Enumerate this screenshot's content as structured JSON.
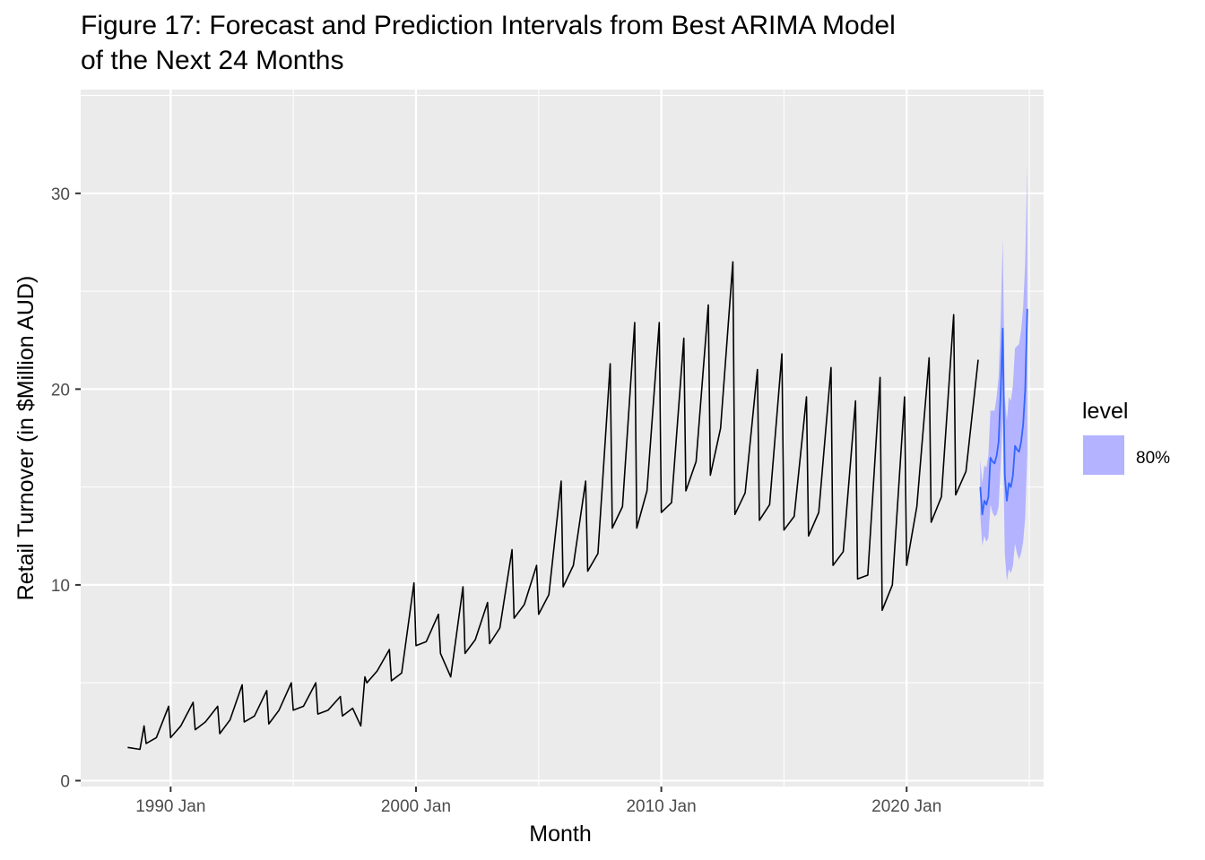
{
  "chart_data": {
    "type": "line",
    "title_lines": [
      "Figure 17: Forecast and Prediction Intervals from Best ARIMA Model",
      "of the Next 24 Months"
    ],
    "xlabel": "Month",
    "ylabel": "Retail Turnover (in $Million AUD)",
    "x_ticks": [
      "1990 Jan",
      "2000 Jan",
      "2010 Jan",
      "2020 Jan"
    ],
    "y_ticks": [
      0,
      10,
      20,
      30
    ],
    "xlim": [
      "1986-05",
      "2025-08"
    ],
    "ylim": [
      -0.3,
      35.3
    ],
    "grid": true,
    "legend": {
      "title": "level",
      "placement": "right",
      "entries": [
        {
          "label": "80%",
          "color": "#b3b3ff"
        }
      ]
    },
    "colors": {
      "actual": "#000000",
      "forecast": "#3366ff",
      "interval": "#b3b3ff",
      "panel": "#ebebeb",
      "grid": "#ffffff"
    },
    "series": [
      {
        "role": "actual",
        "x": [
          "1988-04",
          "1988-10",
          "1988-12",
          "1989-01",
          "1989-06",
          "1989-12",
          "1990-01",
          "1990-06",
          "1990-12",
          "1991-01",
          "1991-06",
          "1991-12",
          "1992-01",
          "1992-06",
          "1992-12",
          "1993-01",
          "1993-06",
          "1993-12",
          "1994-01",
          "1994-06",
          "1994-12",
          "1995-01",
          "1995-06",
          "1995-12",
          "1996-01",
          "1996-06",
          "1996-12",
          "1997-01",
          "1997-06",
          "1997-10",
          "1997-12",
          "1998-01",
          "1998-06",
          "1998-12",
          "1999-01",
          "1999-06",
          "1999-12",
          "2000-01",
          "2000-06",
          "2000-12",
          "2001-01",
          "2001-06",
          "2001-12",
          "2002-01",
          "2002-06",
          "2002-12",
          "2003-01",
          "2003-06",
          "2003-12",
          "2004-01",
          "2004-06",
          "2004-12",
          "2005-01",
          "2005-06",
          "2005-12",
          "2006-01",
          "2006-06",
          "2006-12",
          "2007-01",
          "2007-06",
          "2007-12",
          "2008-01",
          "2008-06",
          "2008-12",
          "2009-01",
          "2009-06",
          "2009-12",
          "2010-01",
          "2010-06",
          "2010-12",
          "2011-01",
          "2011-06",
          "2011-12",
          "2012-01",
          "2012-06",
          "2012-12",
          "2013-01",
          "2013-06",
          "2013-12",
          "2014-01",
          "2014-06",
          "2014-12",
          "2015-01",
          "2015-06",
          "2015-12",
          "2016-01",
          "2016-06",
          "2016-12",
          "2017-01",
          "2017-06",
          "2017-12",
          "2018-01",
          "2018-06",
          "2018-12",
          "2019-01",
          "2019-06",
          "2019-12",
          "2020-01",
          "2020-06",
          "2020-12",
          "2021-01",
          "2021-06",
          "2021-12",
          "2022-01",
          "2022-06",
          "2022-12"
        ],
        "y": [
          1.7,
          1.6,
          2.8,
          1.9,
          2.2,
          3.8,
          2.2,
          2.8,
          4.0,
          2.6,
          3.0,
          3.8,
          2.4,
          3.1,
          4.9,
          3.0,
          3.3,
          4.6,
          2.9,
          3.6,
          5.0,
          3.6,
          3.8,
          5.0,
          3.4,
          3.6,
          4.3,
          3.3,
          3.7,
          2.8,
          5.3,
          5.0,
          5.6,
          6.7,
          5.1,
          5.5,
          10.1,
          6.9,
          7.1,
          8.5,
          6.5,
          5.3,
          9.9,
          6.5,
          7.2,
          9.1,
          7.0,
          7.8,
          11.8,
          8.3,
          9.0,
          11.0,
          8.5,
          9.5,
          15.3,
          9.9,
          11.0,
          15.3,
          10.7,
          11.6,
          21.3,
          12.9,
          14.0,
          23.4,
          12.9,
          14.8,
          23.4,
          13.7,
          14.2,
          22.6,
          14.8,
          16.3,
          24.3,
          15.6,
          18.0,
          26.5,
          13.6,
          14.7,
          21.0,
          13.3,
          14.1,
          21.8,
          12.8,
          13.5,
          19.6,
          12.5,
          13.7,
          21.1,
          11.0,
          11.7,
          19.4,
          10.3,
          10.5,
          20.6,
          8.7,
          10.0,
          19.6,
          11.0,
          14.0,
          21.6,
          13.2,
          14.5,
          23.8,
          14.6,
          15.8,
          21.5
        ]
      },
      {
        "role": "forecast",
        "x": [
          "2023-01",
          "2023-02",
          "2023-03",
          "2023-04",
          "2023-05",
          "2023-06",
          "2023-07",
          "2023-08",
          "2023-09",
          "2023-10",
          "2023-11",
          "2023-12",
          "2024-01",
          "2024-02",
          "2024-03",
          "2024-04",
          "2024-05",
          "2024-06",
          "2024-07",
          "2024-08",
          "2024-09",
          "2024-10",
          "2024-11",
          "2024-12"
        ],
        "mean": [
          15.0,
          13.6,
          14.3,
          14.1,
          14.5,
          16.5,
          16.3,
          16.2,
          16.6,
          17.3,
          19.8,
          23.1,
          15.6,
          14.3,
          15.2,
          15.0,
          15.6,
          17.1,
          16.9,
          16.8,
          17.3,
          18.2,
          20.0,
          24.1
        ],
        "lo80": [
          13.6,
          12.0,
          12.5,
          12.2,
          12.4,
          14.1,
          13.7,
          13.5,
          13.6,
          14.0,
          16.1,
          18.5,
          11.6,
          10.2,
          10.8,
          10.6,
          11.0,
          12.1,
          11.6,
          11.3,
          11.6,
          12.2,
          13.5,
          16.8
        ],
        "hi80": [
          16.4,
          15.2,
          16.1,
          16.0,
          16.6,
          18.9,
          18.9,
          18.9,
          19.6,
          20.6,
          23.5,
          27.7,
          19.6,
          18.4,
          19.6,
          19.4,
          20.2,
          22.1,
          22.2,
          22.3,
          23.0,
          24.2,
          26.5,
          31.4
        ]
      }
    ]
  }
}
